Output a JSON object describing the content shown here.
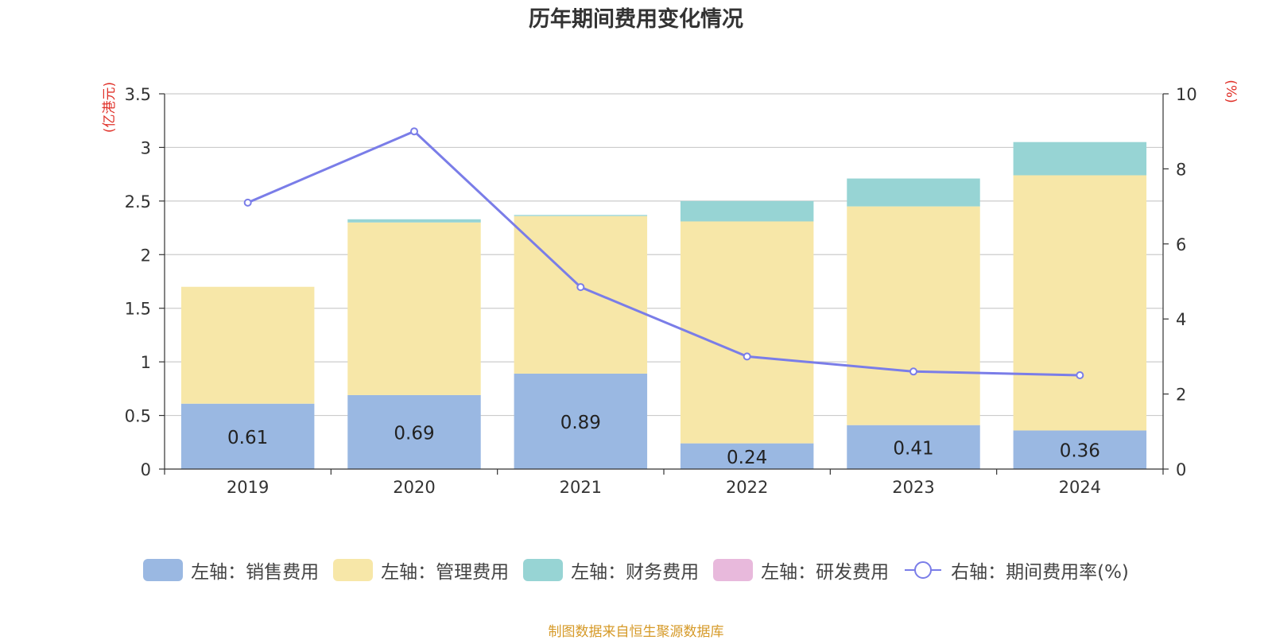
{
  "chart_data": {
    "type": "bar",
    "title": "历年期间费用变化情况",
    "categories": [
      "2019",
      "2020",
      "2021",
      "2022",
      "2023",
      "2024"
    ],
    "left_axis": {
      "unit_label": "(亿港元)",
      "range": [
        0,
        3.5
      ],
      "ticks": [
        "0",
        "0.5",
        "1",
        "1.5",
        "2",
        "2.5",
        "3",
        "3.5"
      ]
    },
    "right_axis": {
      "unit_label": "(%)",
      "range": [
        0,
        10
      ],
      "ticks": [
        "0",
        "2",
        "4",
        "6",
        "8",
        "10"
      ]
    },
    "grid": true,
    "series": [
      {
        "name": "左轴：销售费用",
        "kind": "bar",
        "axis": "left",
        "color": "#9ab8e2",
        "values": [
          0.61,
          0.69,
          0.89,
          0.24,
          0.41,
          0.36
        ],
        "labels": [
          "0.61",
          "0.69",
          "0.89",
          "0.24",
          "0.41",
          "0.36"
        ]
      },
      {
        "name": "左轴：管理费用",
        "kind": "bar",
        "axis": "left",
        "color": "#f7e7a8",
        "values": [
          1.09,
          1.61,
          1.47,
          2.07,
          2.04,
          2.38
        ]
      },
      {
        "name": "左轴：财务费用",
        "kind": "bar",
        "axis": "left",
        "color": "#97d4d4",
        "values": [
          0.0,
          0.03,
          0.01,
          0.19,
          0.26,
          0.31
        ]
      },
      {
        "name": "左轴：研发费用",
        "kind": "bar",
        "axis": "left",
        "color": "#e8b9dc",
        "values": [
          0,
          0,
          0,
          0,
          0,
          0
        ]
      },
      {
        "name": "右轴：期间费用率(%)",
        "kind": "line",
        "axis": "right",
        "color": "#7a7de8",
        "values": [
          7.1,
          9.0,
          4.85,
          3.0,
          2.6,
          2.5
        ]
      }
    ]
  },
  "source_note": "制图数据来自恒生聚源数据库"
}
